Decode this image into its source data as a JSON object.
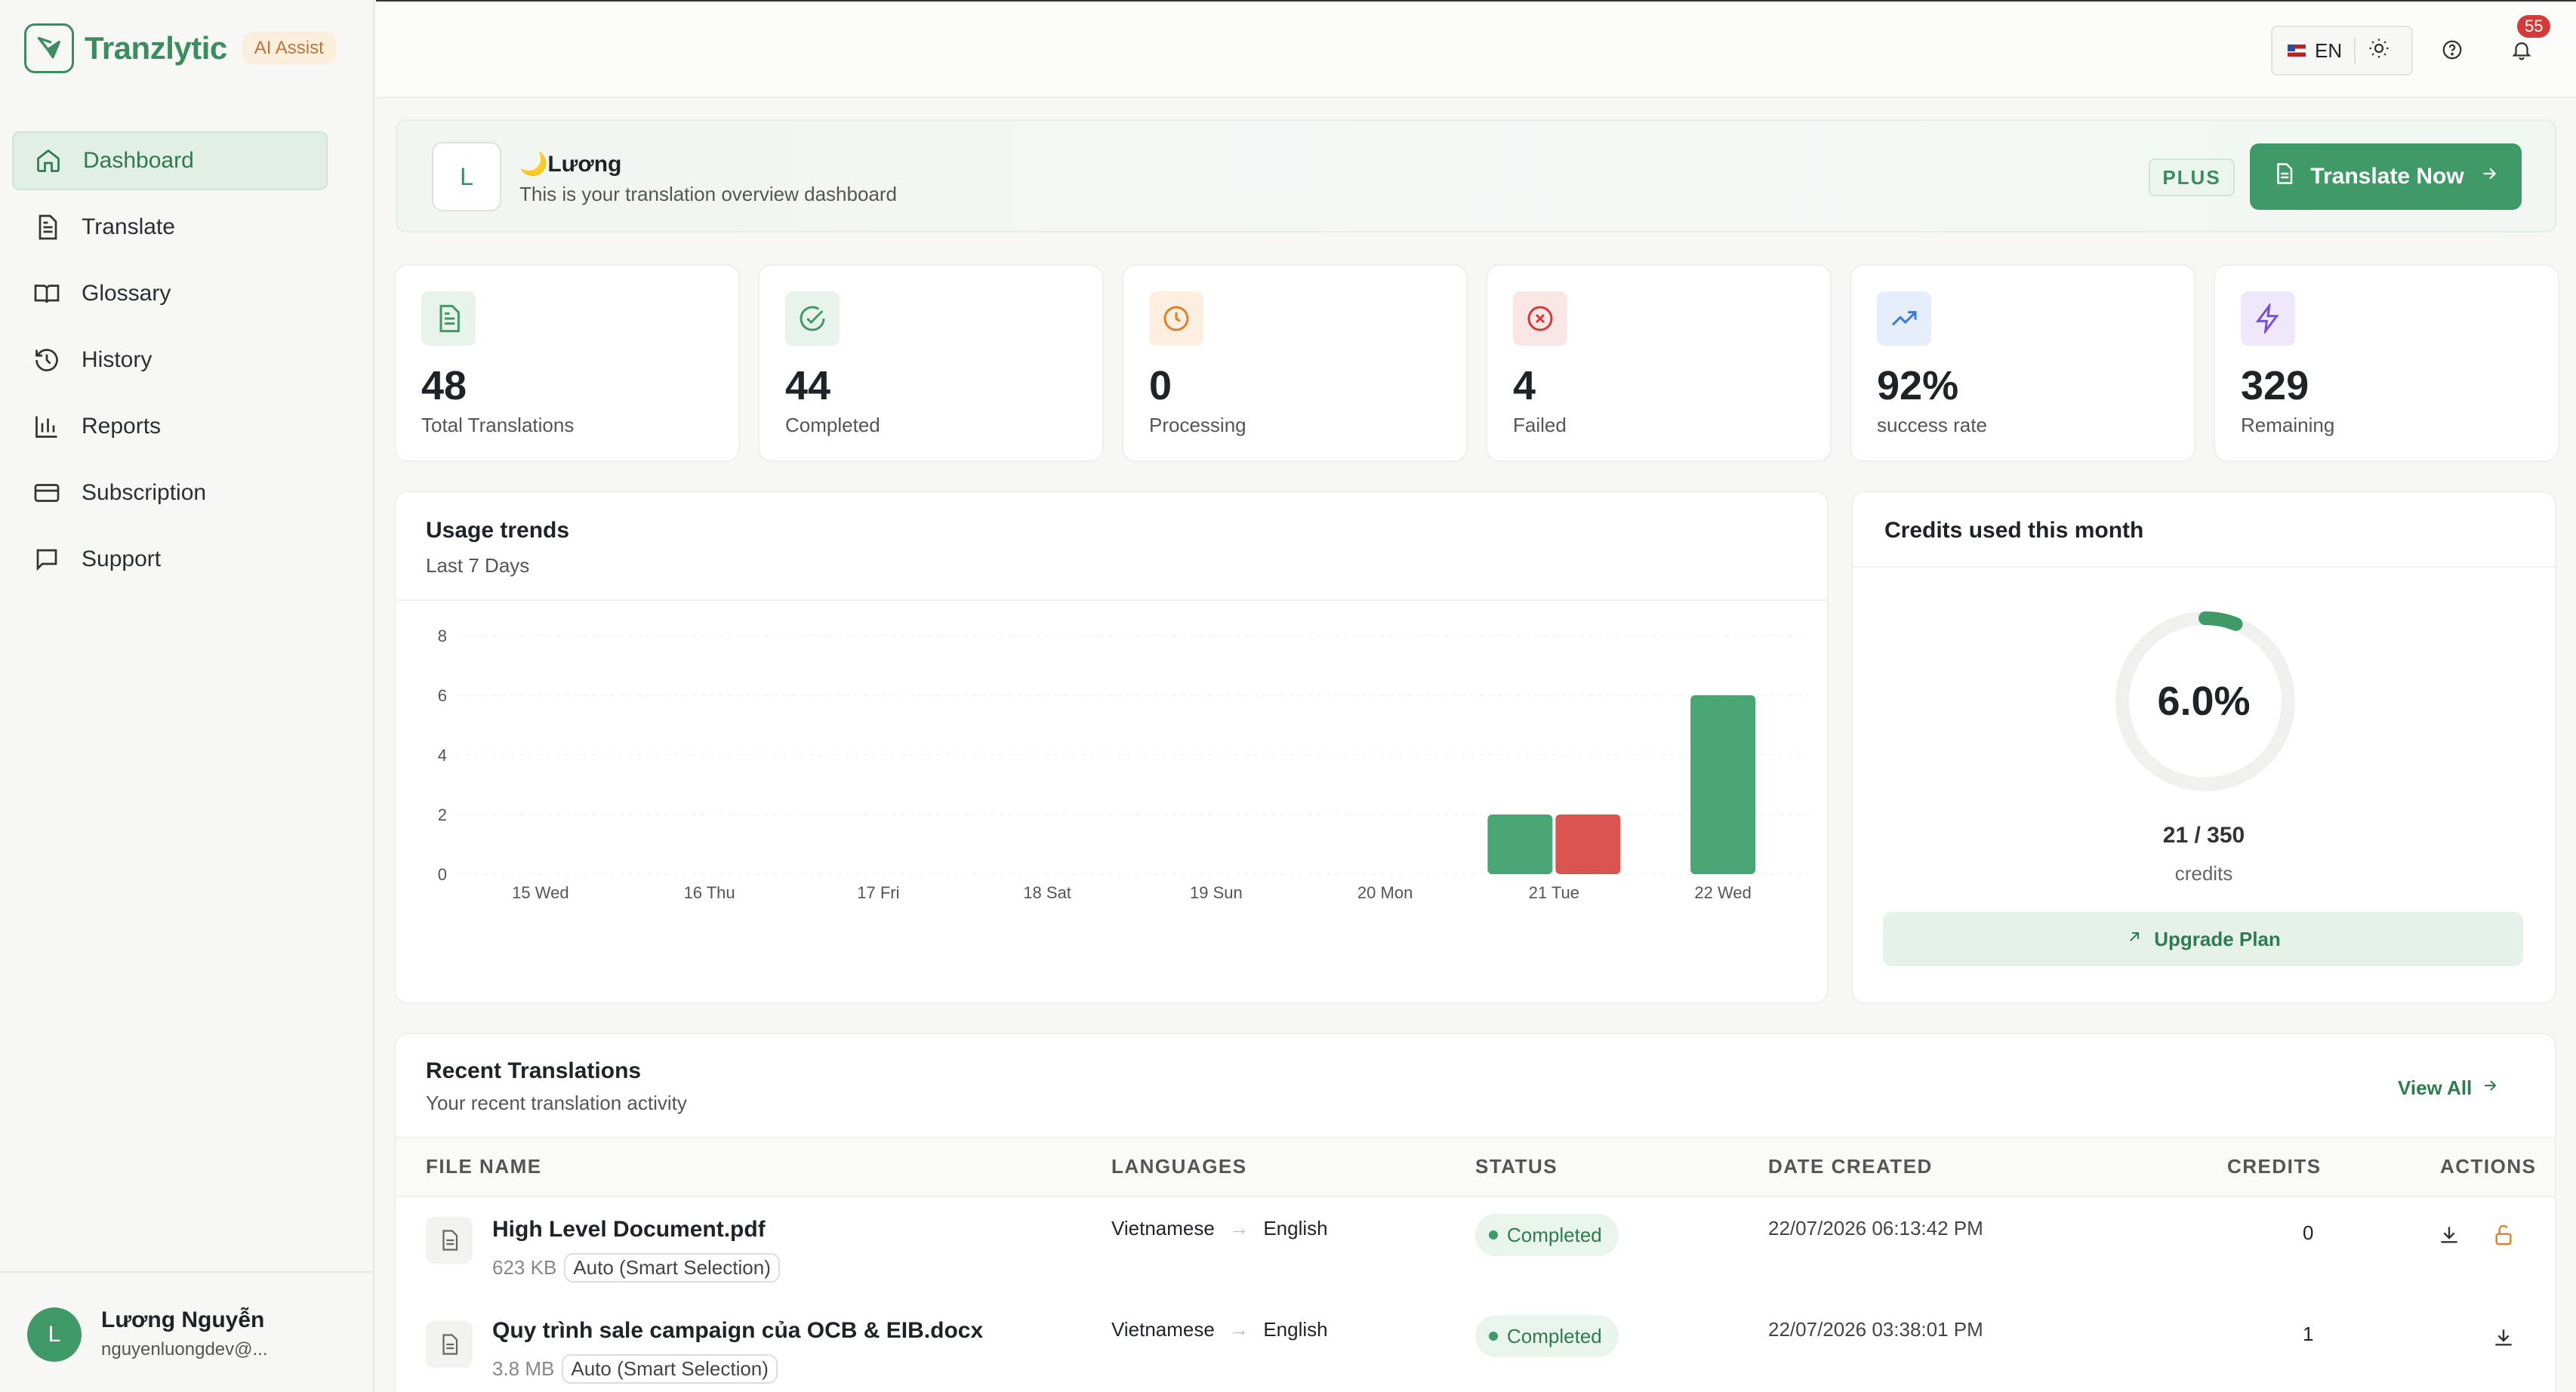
{
  "brand": {
    "name": "Tranzlytic",
    "badge": "AI Assist"
  },
  "sidebar": {
    "items": [
      {
        "label": "Dashboard",
        "icon": "home-icon",
        "active": true
      },
      {
        "label": "Translate",
        "icon": "document-icon"
      },
      {
        "label": "Glossary",
        "icon": "book-icon"
      },
      {
        "label": "History",
        "icon": "history-icon"
      },
      {
        "label": "Reports",
        "icon": "bar-chart-icon"
      },
      {
        "label": "Subscription",
        "icon": "card-icon"
      },
      {
        "label": "Support",
        "icon": "chat-icon"
      }
    ],
    "user": {
      "initial": "L",
      "name": "Lương Nguyễn",
      "email": "nguyenluongdev@..."
    }
  },
  "topbar": {
    "language": "EN",
    "notifications": "55"
  },
  "welcome": {
    "initial": "L",
    "emoji": "🌙",
    "name": "Lương",
    "subtitle": "This is your translation overview dashboard",
    "plan": "PLUS",
    "cta": "Translate Now"
  },
  "stats": [
    {
      "value": "48",
      "label": "Total Translations",
      "icon": "document-icon",
      "color": "#3f9a67",
      "bg": "#e8f3ec"
    },
    {
      "value": "44",
      "label": "Completed",
      "icon": "check-circle-icon",
      "color": "#3f9a67",
      "bg": "#e8f3ec"
    },
    {
      "value": "0",
      "label": "Processing",
      "icon": "clock-icon",
      "color": "#d9822b",
      "bg": "#fcefe0"
    },
    {
      "value": "4",
      "label": "Failed",
      "icon": "x-circle-icon",
      "color": "#d33a3a",
      "bg": "#fbe6e6"
    },
    {
      "value": "92%",
      "label": "success rate",
      "icon": "trending-up-icon",
      "color": "#3a7bd5",
      "bg": "#e6eefb"
    },
    {
      "value": "329",
      "label": "Remaining",
      "icon": "lightning-icon",
      "color": "#7a4fd6",
      "bg": "#efe8fb"
    }
  ],
  "usage": {
    "title": "Usage trends",
    "subtitle": "Last 7 Days"
  },
  "chart_data": {
    "type": "bar",
    "categories": [
      "15 Wed",
      "16 Thu",
      "17 Fri",
      "18 Sat",
      "19 Sun",
      "20 Mon",
      "21 Tue",
      "22 Wed"
    ],
    "series": [
      {
        "values": [
          0,
          0,
          0,
          0,
          0,
          0,
          2,
          6
        ],
        "color": "#4aa574"
      },
      {
        "values": [
          0,
          0,
          0,
          0,
          0,
          0,
          2,
          0
        ],
        "color": "#d9534f"
      }
    ],
    "yticks": [
      0,
      2,
      4,
      6,
      8
    ],
    "ylim": [
      0,
      8
    ],
    "grid": true
  },
  "credits": {
    "title": "Credits used this month",
    "percent_label": "6.0%",
    "fraction": 0.06,
    "used": "21 / 350",
    "unit": "credits",
    "upgrade": "Upgrade Plan"
  },
  "recent": {
    "title": "Recent Translations",
    "subtitle": "Your recent translation activity",
    "view_all": "View All",
    "columns": [
      "FILE NAME",
      "LANGUAGES",
      "STATUS",
      "DATE CREATED",
      "CREDITS",
      "ACTIONS"
    ],
    "rows": [
      {
        "name": "High Level Document.pdf",
        "size": "623 KB",
        "mode": "Auto (Smart Selection)",
        "from": "Vietnamese",
        "to": "English",
        "status": "Completed",
        "date": "22/07/2026 06:13:42 PM",
        "credits": "0"
      },
      {
        "name": "Quy trình sale campaign của OCB & EIB.docx",
        "size": "3.8 MB",
        "mode": "Auto (Smart Selection)",
        "from": "Vietnamese",
        "to": "English",
        "status": "Completed",
        "date": "22/07/2026 03:38:01 PM",
        "credits": "1"
      }
    ]
  }
}
